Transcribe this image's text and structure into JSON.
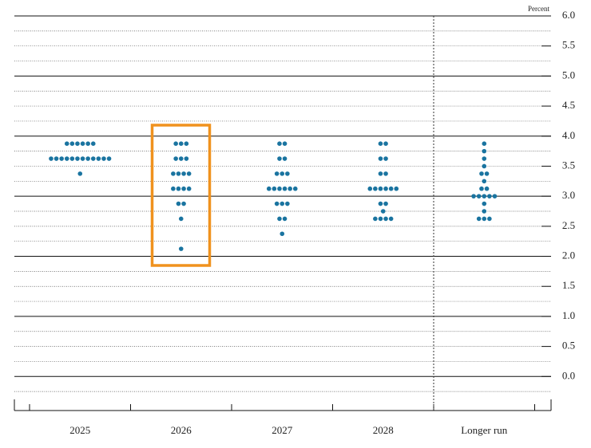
{
  "chart_data": {
    "type": "dot",
    "y_axis_label": "Percent",
    "categories": [
      "2025",
      "2026",
      "2027",
      "2028",
      "Longer run"
    ],
    "values": [
      [
        3.875,
        3.875,
        3.875,
        3.875,
        3.875,
        3.875,
        3.625,
        3.625,
        3.625,
        3.625,
        3.625,
        3.625,
        3.625,
        3.625,
        3.625,
        3.625,
        3.625,
        3.625,
        3.375
      ],
      [
        3.875,
        3.875,
        3.875,
        3.625,
        3.625,
        3.625,
        3.375,
        3.375,
        3.375,
        3.375,
        3.125,
        3.125,
        3.125,
        3.125,
        2.875,
        2.875,
        2.625,
        2.125
      ],
      [
        3.875,
        3.875,
        3.625,
        3.625,
        3.375,
        3.375,
        3.375,
        3.125,
        3.125,
        3.125,
        3.125,
        3.125,
        3.125,
        2.875,
        2.875,
        2.875,
        2.625,
        2.625,
        2.375
      ],
      [
        3.875,
        3.875,
        3.625,
        3.625,
        3.375,
        3.375,
        3.125,
        3.125,
        3.125,
        3.125,
        3.125,
        3.125,
        2.875,
        2.875,
        2.75,
        2.625,
        2.625,
        2.625,
        2.625
      ],
      [
        3.875,
        3.75,
        3.625,
        3.5,
        3.375,
        3.375,
        3.25,
        3.125,
        3.125,
        3.0,
        3.0,
        3.0,
        3.0,
        3.0,
        2.875,
        2.75,
        2.625,
        2.625,
        2.625
      ]
    ],
    "color": "#1a74a0",
    "ylim": [
      -0.5,
      6.0
    ],
    "yticks": [
      {
        "value": 0,
        "label": "0.0"
      },
      {
        "value": 0.5,
        "label": "0.5"
      },
      {
        "value": 1,
        "label": "1.0"
      },
      {
        "value": 1.5,
        "label": "1.5"
      },
      {
        "value": 2,
        "label": "2.0"
      },
      {
        "value": 2.5,
        "label": "2.5"
      },
      {
        "value": 3,
        "label": "3.0"
      },
      {
        "value": 3.5,
        "label": "3.5"
      },
      {
        "value": 4,
        "label": "4.0"
      },
      {
        "value": 4.5,
        "label": "4.5"
      },
      {
        "value": 5,
        "label": "5.0"
      },
      {
        "value": 5.5,
        "label": "5.5"
      },
      {
        "value": 6,
        "label": "6.0"
      }
    ],
    "grid": true
  }
}
